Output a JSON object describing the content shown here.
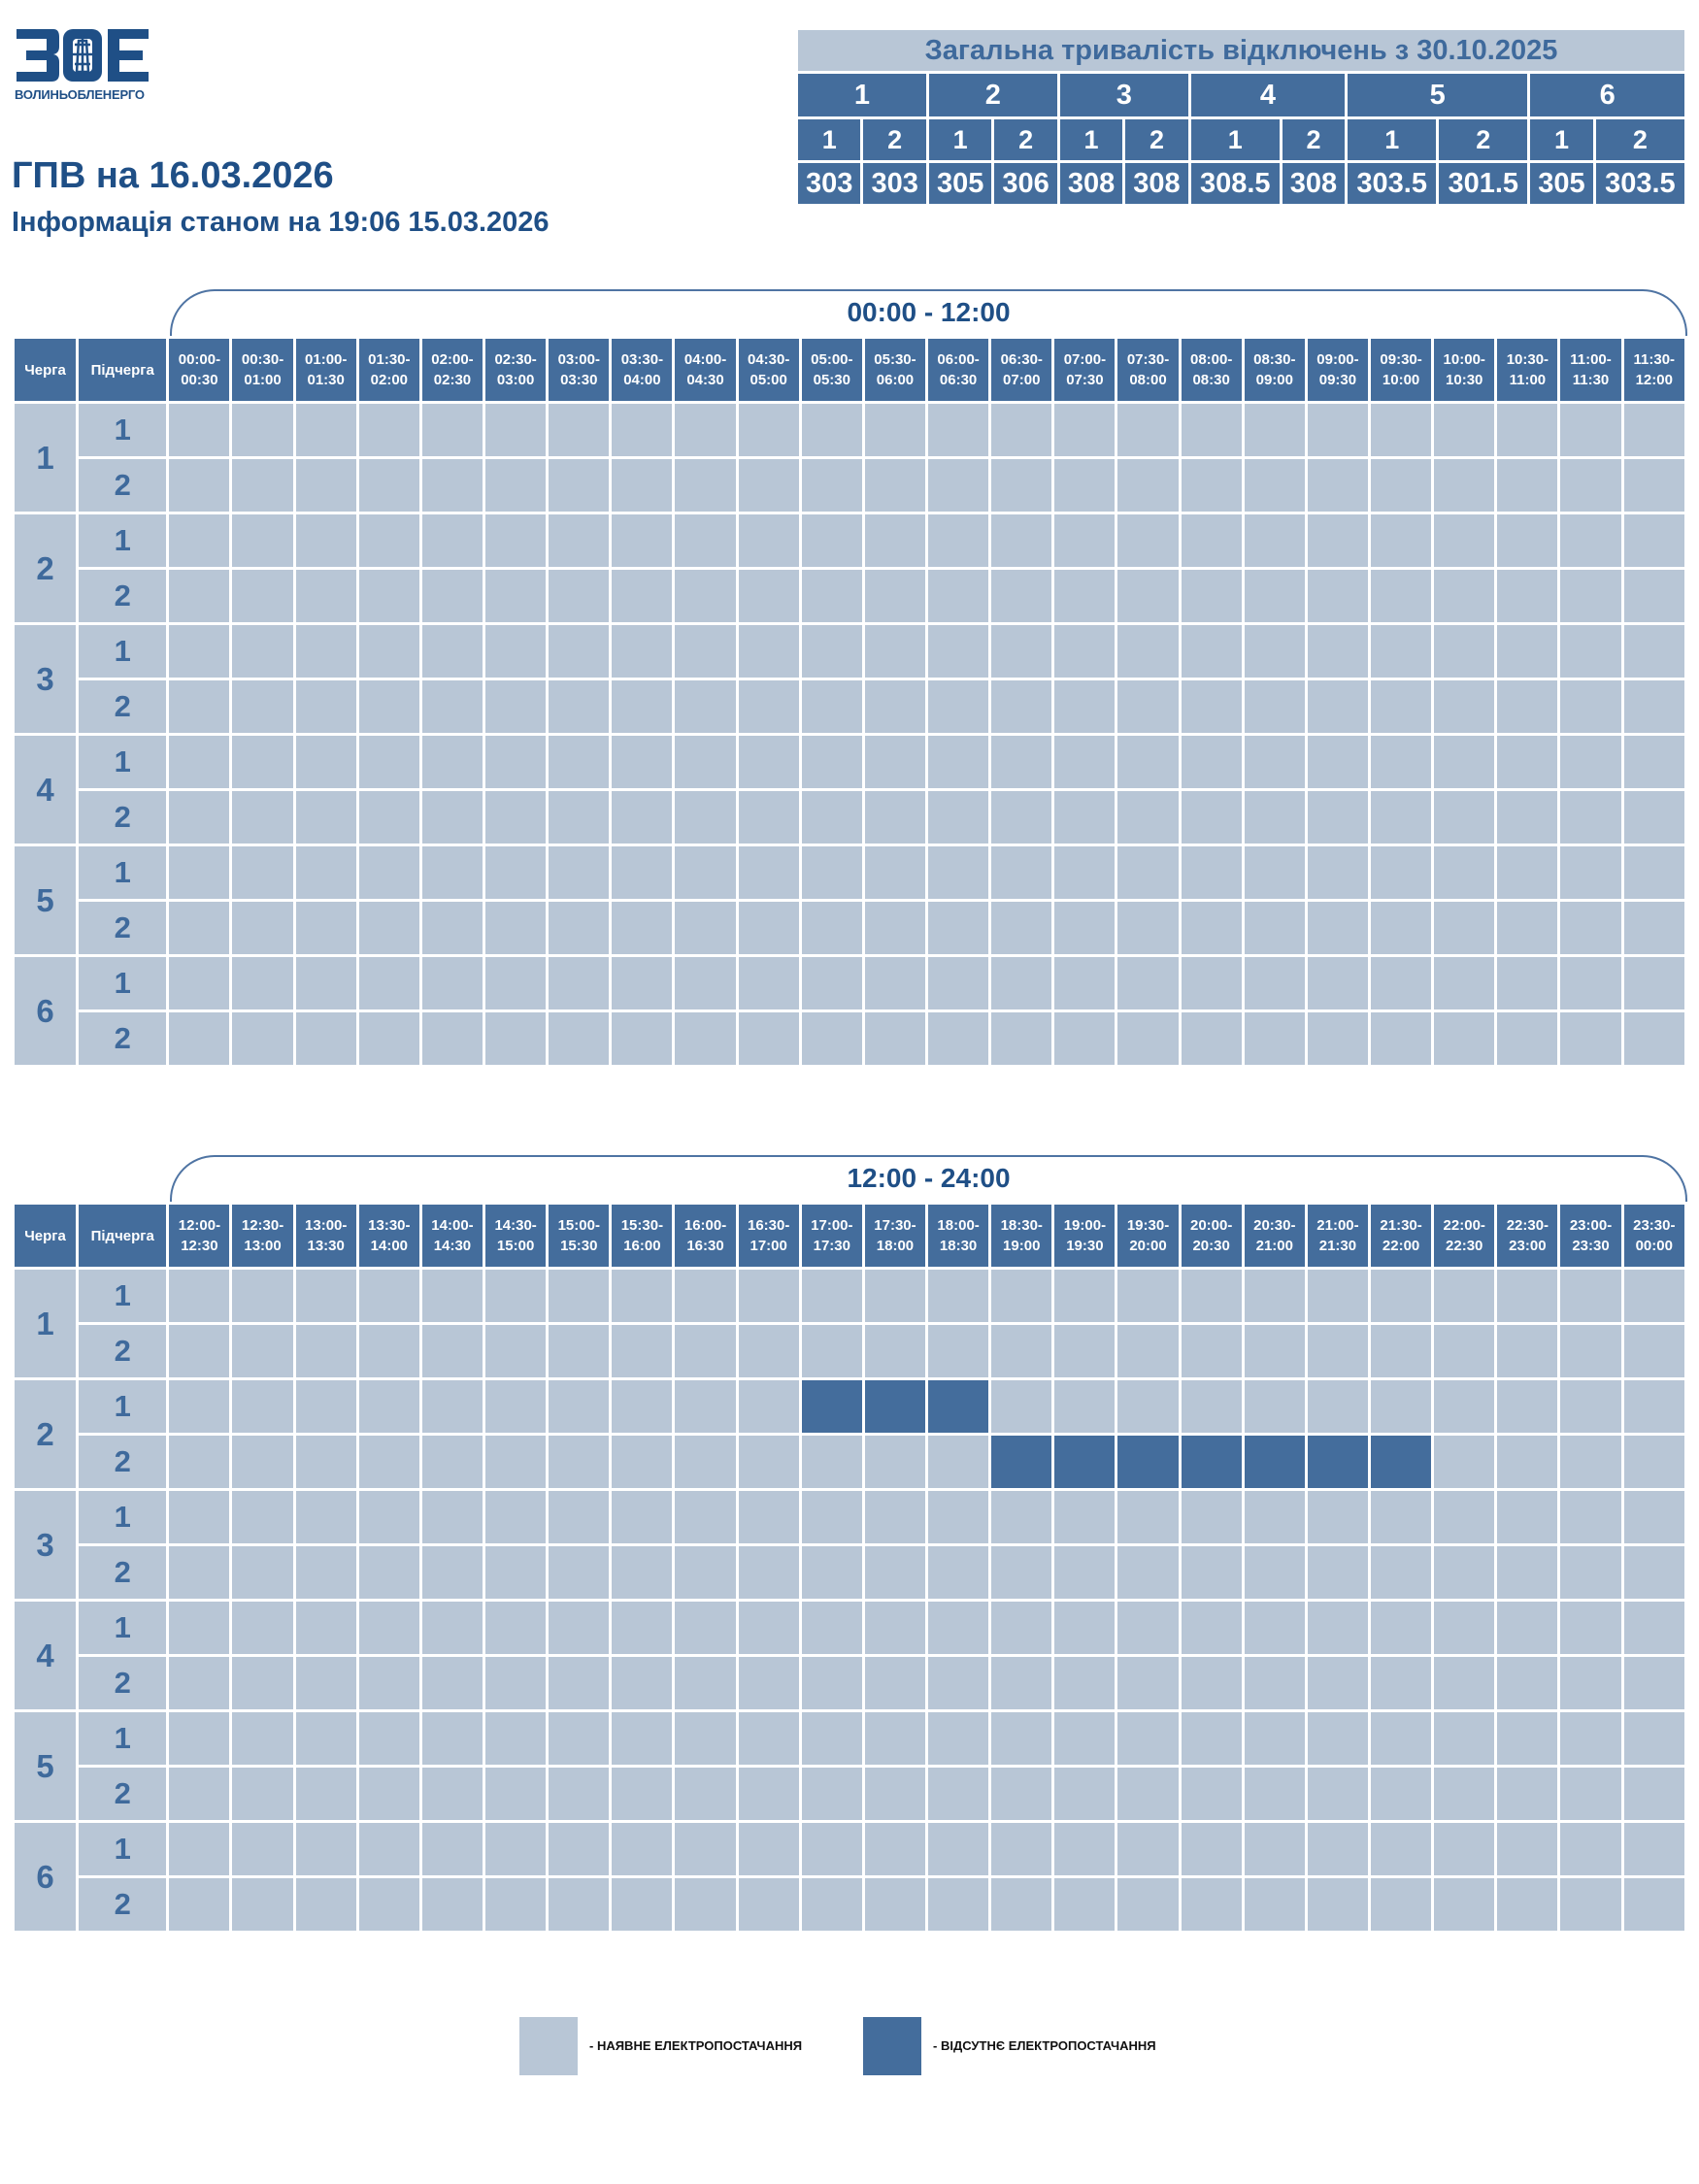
{
  "logo": {
    "mark": "ЗОЕ",
    "caption": "ВОЛИНЬОБЛЕНЕРГО"
  },
  "title": "ГПВ на 16.03.2026",
  "subtitle": "Інформація станом на 19:06 15.03.2026",
  "summary": {
    "title": "Загальна тривалість відключень з 30.10.2025",
    "queues": [
      {
        "label": "1",
        "subs": [
          {
            "label": "1",
            "value": "303"
          },
          {
            "label": "2",
            "value": "303"
          }
        ]
      },
      {
        "label": "2",
        "subs": [
          {
            "label": "1",
            "value": "305"
          },
          {
            "label": "2",
            "value": "306"
          }
        ]
      },
      {
        "label": "3",
        "subs": [
          {
            "label": "1",
            "value": "308"
          },
          {
            "label": "2",
            "value": "308"
          }
        ]
      },
      {
        "label": "4",
        "subs": [
          {
            "label": "1",
            "value": "308.5"
          },
          {
            "label": "2",
            "value": "308"
          }
        ]
      },
      {
        "label": "5",
        "subs": [
          {
            "label": "1",
            "value": "303.5"
          },
          {
            "label": "2",
            "value": "301.5"
          }
        ]
      },
      {
        "label": "6",
        "subs": [
          {
            "label": "1",
            "value": "305"
          },
          {
            "label": "2",
            "value": "303.5"
          }
        ]
      }
    ]
  },
  "headers": {
    "queue": "Черга",
    "subqueue": "Підчерга"
  },
  "queues": [
    {
      "label": "1",
      "subs": [
        "1",
        "2"
      ]
    },
    {
      "label": "2",
      "subs": [
        "1",
        "2"
      ]
    },
    {
      "label": "3",
      "subs": [
        "1",
        "2"
      ]
    },
    {
      "label": "4",
      "subs": [
        "1",
        "2"
      ]
    },
    {
      "label": "5",
      "subs": [
        "1",
        "2"
      ]
    },
    {
      "label": "6",
      "subs": [
        "1",
        "2"
      ]
    }
  ],
  "sections": [
    {
      "range": "00:00 - 12:00",
      "slots": [
        "00:00-00:30",
        "00:30-01:00",
        "01:00-01:30",
        "01:30-02:00",
        "02:00-02:30",
        "02:30-03:00",
        "03:00-03:30",
        "03:30-04:00",
        "04:00-04:30",
        "04:30-05:00",
        "05:00-05:30",
        "05:30-06:00",
        "06:00-06:30",
        "06:30-07:00",
        "07:00-07:30",
        "07:30-08:00",
        "08:00-08:30",
        "08:30-09:00",
        "09:00-09:30",
        "09:30-10:00",
        "10:00-10:30",
        "10:30-11:00",
        "11:00-11:30",
        "11:30-12:00"
      ],
      "outages": []
    },
    {
      "range": "12:00 - 24:00",
      "slots": [
        "12:00-12:30",
        "12:30-13:00",
        "13:00-13:30",
        "13:30-14:00",
        "14:00-14:30",
        "14:30-15:00",
        "15:00-15:30",
        "15:30-16:00",
        "16:00-16:30",
        "16:30-17:00",
        "17:00-17:30",
        "17:30-18:00",
        "18:00-18:30",
        "18:30-19:00",
        "19:00-19:30",
        "19:30-20:00",
        "20:00-20:30",
        "20:30-21:00",
        "21:00-21:30",
        "21:30-22:00",
        "22:00-22:30",
        "22:30-23:00",
        "23:00-23:30",
        "23:30-00:00"
      ],
      "outages": [
        {
          "queue": "2",
          "sub": "1",
          "slots": [
            "17:00-17:30",
            "17:30-18:00",
            "18:00-18:30"
          ]
        },
        {
          "queue": "2",
          "sub": "2",
          "slots": [
            "18:30-19:00",
            "19:00-19:30",
            "19:30-20:00",
            "20:00-20:30",
            "20:30-21:00",
            "21:00-21:30",
            "21:30-22:00"
          ]
        }
      ]
    }
  ],
  "legend": {
    "available": {
      "label": "- НАЯВНЕ ЕЛЕКТРОПОСТАЧАННЯ",
      "color": "#b8c6d6"
    },
    "absent": {
      "label": "- ВІДСУТНЄ ЕЛЕКТРОПОСТАЧАННЯ",
      "color": "#446d9c"
    }
  },
  "colors": {
    "accent": "#1f4f86",
    "header": "#446d9c",
    "cell": "#b8c6d6"
  }
}
